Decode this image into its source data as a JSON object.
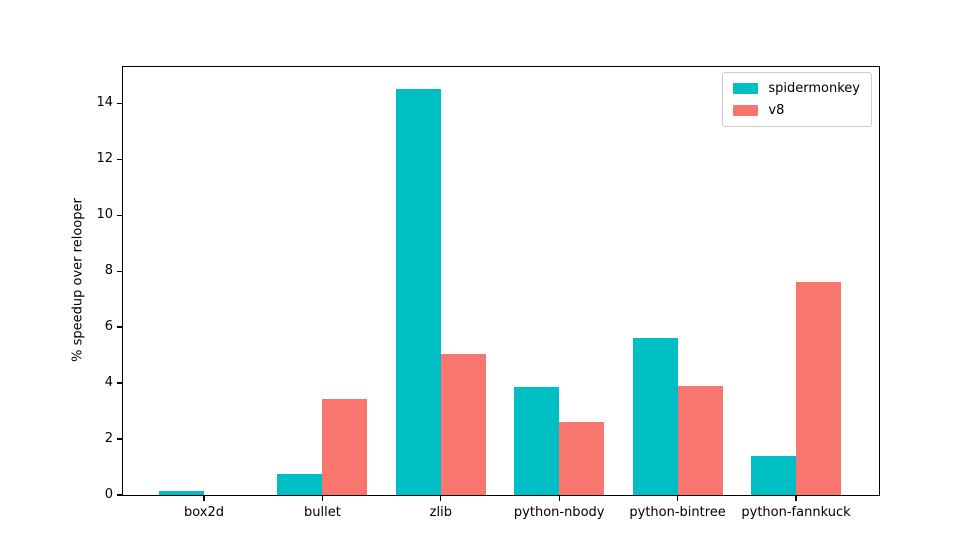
{
  "chart_data": {
    "type": "bar",
    "title": "",
    "xlabel": "",
    "ylabel": "% speedup over relooper",
    "categories": [
      "box2d",
      "bullet",
      "zlib",
      "python-nbody",
      "python-bintree",
      "python-fannkuck"
    ],
    "series": [
      {
        "name": "spidermonkey",
        "color": "#00BFC4",
        "values": [
          0.15,
          0.75,
          14.5,
          3.85,
          5.6,
          1.4
        ]
      },
      {
        "name": "v8",
        "color": "#F8766D",
        "values": [
          0,
          3.45,
          5.05,
          2.6,
          3.9,
          7.6
        ]
      }
    ],
    "yticks": [
      0,
      2,
      4,
      6,
      8,
      10,
      12,
      14
    ],
    "ylim": [
      0,
      15.3
    ],
    "grid": false,
    "legend_position": "top-right",
    "legend_labels": [
      "spidermonkey",
      "v8"
    ]
  }
}
